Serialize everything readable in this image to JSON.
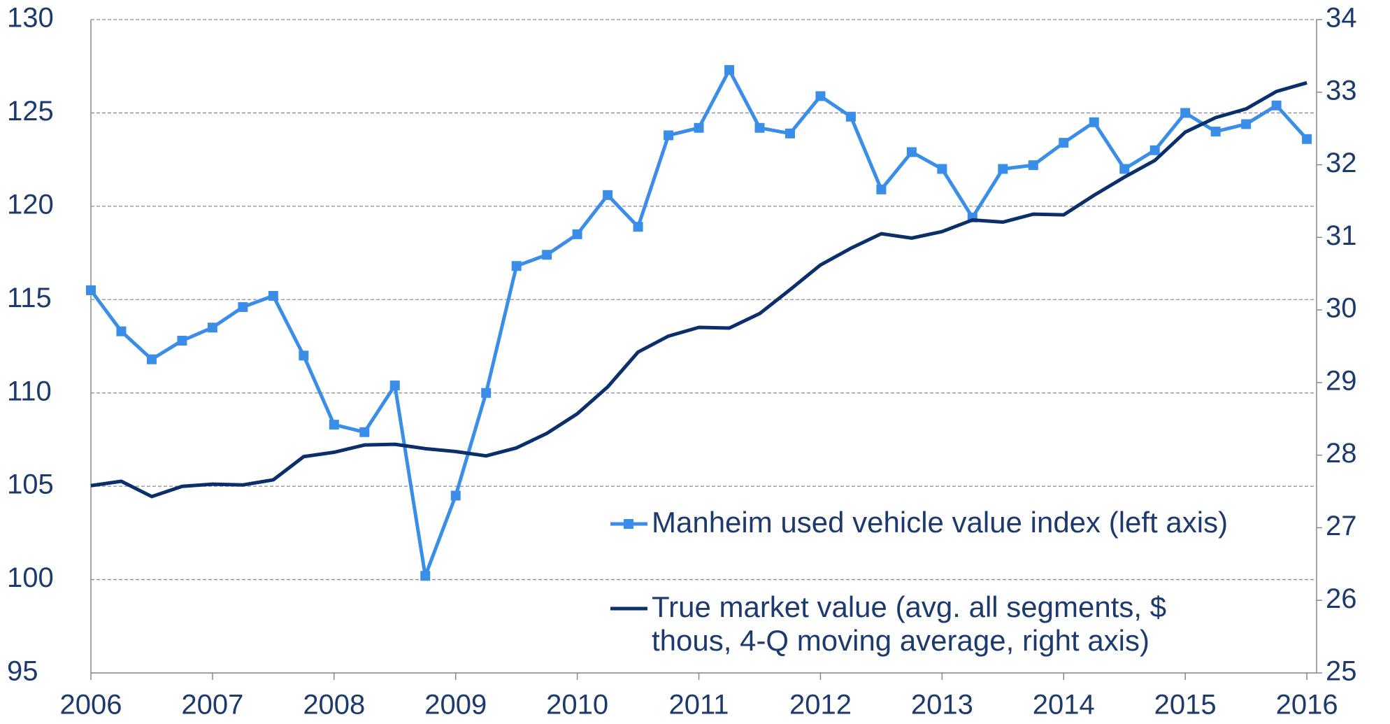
{
  "chart_data": {
    "type": "line",
    "x": [
      2006,
      2006.25,
      2006.5,
      2006.75,
      2007,
      2007.25,
      2007.5,
      2007.75,
      2008,
      2008.25,
      2008.5,
      2008.75,
      2009,
      2009.25,
      2009.5,
      2009.75,
      2010,
      2010.25,
      2010.5,
      2010.75,
      2011,
      2011.25,
      2011.5,
      2011.75,
      2012,
      2012.25,
      2012.5,
      2012.75,
      2013,
      2013.25,
      2013.5,
      2013.75,
      2014,
      2014.25,
      2014.5,
      2014.75,
      2015,
      2015.25,
      2015.5,
      2015.75,
      2016
    ],
    "series": [
      {
        "name": "Manheim used vehicle value index (left axis)",
        "color": "#3a8ee8",
        "marker": "square",
        "values": [
          115.5,
          113.3,
          111.8,
          112.8,
          113.5,
          114.6,
          115.2,
          112.0,
          108.3,
          107.9,
          110.4,
          100.2,
          104.5,
          110.0,
          116.8,
          117.4,
          118.5,
          120.6,
          118.9,
          123.8,
          124.2,
          127.3,
          124.2,
          123.9,
          125.9,
          124.8,
          120.9,
          122.9,
          122.0,
          119.4,
          122.0,
          122.2,
          123.4,
          124.5,
          122.0,
          123.0,
          125.0,
          124.0,
          124.4,
          125.4,
          123.6
        ]
      },
      {
        "name": "True market value (avg. all segments, $ thous, 4-Q moving average, right axis)",
        "color": "#0b2f6b",
        "axis": "y2",
        "values": [
          27.58,
          27.64,
          27.43,
          27.57,
          27.6,
          27.59,
          27.66,
          27.98,
          28.04,
          28.14,
          28.15,
          28.09,
          28.05,
          27.99,
          28.1,
          28.3,
          28.57,
          28.94,
          29.42,
          29.64,
          29.76,
          29.75,
          29.95,
          30.28,
          30.62,
          30.85,
          31.05,
          30.99,
          31.08,
          31.24,
          31.21,
          31.32,
          31.31,
          31.58,
          31.83,
          32.06,
          32.45,
          32.65,
          32.77,
          33.01,
          33.13
        ]
      }
    ],
    "xlim": [
      2006,
      2016.08
    ],
    "xticks": [
      2006,
      2007,
      2008,
      2009,
      2010,
      2011,
      2012,
      2013,
      2014,
      2015,
      2016
    ],
    "ylim": [
      95,
      130
    ],
    "yticks": [
      95,
      100,
      105,
      110,
      115,
      120,
      125,
      130
    ],
    "y2lim": [
      25,
      34
    ],
    "y2ticks": [
      25,
      26,
      27,
      28,
      29,
      30,
      31,
      32,
      33,
      34
    ],
    "grid": true,
    "legend": "bottom-right"
  }
}
